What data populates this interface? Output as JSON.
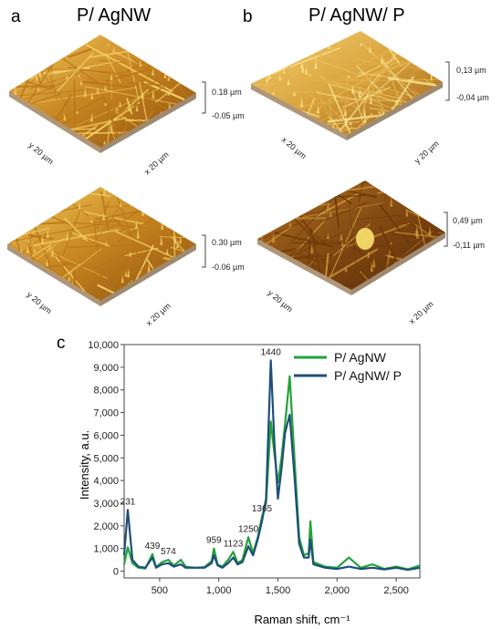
{
  "panel_a": {
    "letter": "a",
    "title": "P/ AgNW",
    "top_image": {
      "scale_max": "0.18 µm",
      "scale_min": "-0.05 µm",
      "axis_y": "y 20 µm",
      "axis_x": "x 20 µm"
    },
    "bottom_image": {
      "scale_max": "0.30 µm",
      "scale_min": "-0.06 µm",
      "axis_y": "y 20 µm",
      "axis_x": "x 20 µm"
    }
  },
  "panel_b": {
    "letter": "b",
    "title": "P/ AgNW/ P",
    "top_image": {
      "scale_max": "0,13 µm",
      "scale_min": "-0,04 µm",
      "axis_x": "x 20 µm",
      "axis_y": "y 20 µm"
    },
    "bottom_image": {
      "scale_max": "0,49 µm",
      "scale_min": "-0,11 µm",
      "axis_y": "y 20 µm",
      "axis_x": "x 20 µm"
    }
  },
  "panel_c": {
    "letter": "c"
  },
  "colors": {
    "afm_dark": "#6b3a08",
    "afm_mid": "#b7761a",
    "afm_light": "#f4cf66",
    "green": "#22a33a",
    "navy": "#1f4e79"
  },
  "chart_data": {
    "type": "line",
    "xlabel": "Raman shift, cm⁻¹",
    "ylabel": "Intensity, a.u.",
    "xlim": [
      200,
      2700
    ],
    "ylim": [
      -300,
      10000
    ],
    "x_ticks": [
      500,
      1000,
      1500,
      2000,
      2500
    ],
    "x_tick_labels": [
      "500",
      "1,000",
      "1,500",
      "2,000",
      "2,500"
    ],
    "y_ticks": [
      0,
      1000,
      2000,
      3000,
      4000,
      5000,
      6000,
      7000,
      8000,
      9000,
      10000
    ],
    "y_tick_labels": [
      "0",
      "1,000",
      "2,000",
      "3,000",
      "4,000",
      "5,000",
      "6,000",
      "7,000",
      "8,000",
      "9,000",
      "10,000"
    ],
    "legend_position": "top-right",
    "series": [
      {
        "name": "P/ AgNW",
        "color": "#22a33a",
        "x": [
          200,
          231,
          270,
          320,
          380,
          439,
          470,
          520,
          574,
          620,
          680,
          720,
          800,
          880,
          940,
          959,
          990,
          1030,
          1080,
          1123,
          1160,
          1200,
          1250,
          1290,
          1330,
          1365,
          1400,
          1440,
          1470,
          1500,
          1530,
          1560,
          1600,
          1640,
          1680,
          1720,
          1760,
          1775,
          1800,
          1900,
          2000,
          2100,
          2200,
          2300,
          2400,
          2500,
          2600,
          2700
        ],
        "y": [
          300,
          1050,
          350,
          150,
          120,
          750,
          180,
          400,
          500,
          250,
          500,
          200,
          150,
          180,
          450,
          1000,
          300,
          200,
          500,
          850,
          350,
          500,
          1500,
          800,
          1500,
          2400,
          3000,
          6600,
          5200,
          3900,
          5000,
          6500,
          8600,
          5000,
          1500,
          700,
          800,
          2200,
          400,
          200,
          150,
          600,
          150,
          300,
          100,
          200,
          80,
          250
        ]
      },
      {
        "name": "P/ AgNW/ P",
        "color": "#1f4e79",
        "x": [
          200,
          231,
          270,
          320,
          380,
          439,
          470,
          520,
          574,
          620,
          680,
          720,
          800,
          880,
          940,
          959,
          990,
          1030,
          1080,
          1123,
          1160,
          1200,
          1250,
          1290,
          1330,
          1365,
          1400,
          1440,
          1470,
          1500,
          1530,
          1560,
          1600,
          1640,
          1680,
          1720,
          1760,
          1775,
          1800,
          1900,
          2000,
          2100,
          2200,
          2300,
          2400,
          2500,
          2600,
          2700
        ],
        "y": [
          700,
          2700,
          500,
          200,
          150,
          600,
          150,
          300,
          350,
          200,
          300,
          150,
          150,
          150,
          350,
          700,
          250,
          150,
          350,
          600,
          300,
          400,
          1100,
          700,
          1400,
          2200,
          3200,
          9300,
          5700,
          3200,
          4500,
          6100,
          6900,
          4200,
          1200,
          600,
          600,
          1400,
          300,
          150,
          100,
          200,
          100,
          150,
          80,
          150,
          60,
          150
        ]
      }
    ],
    "annotations": [
      {
        "text": "231",
        "x": 231,
        "y": 2700
      },
      {
        "text": "439",
        "x": 439,
        "y": 750
      },
      {
        "text": "574",
        "x": 574,
        "y": 500
      },
      {
        "text": "959",
        "x": 959,
        "y": 1000
      },
      {
        "text": "1123",
        "x": 1123,
        "y": 850
      },
      {
        "text": "1250",
        "x": 1250,
        "y": 1500
      },
      {
        "text": "1365",
        "x": 1365,
        "y": 2400
      },
      {
        "text": "1440",
        "x": 1440,
        "y": 9300
      }
    ]
  }
}
